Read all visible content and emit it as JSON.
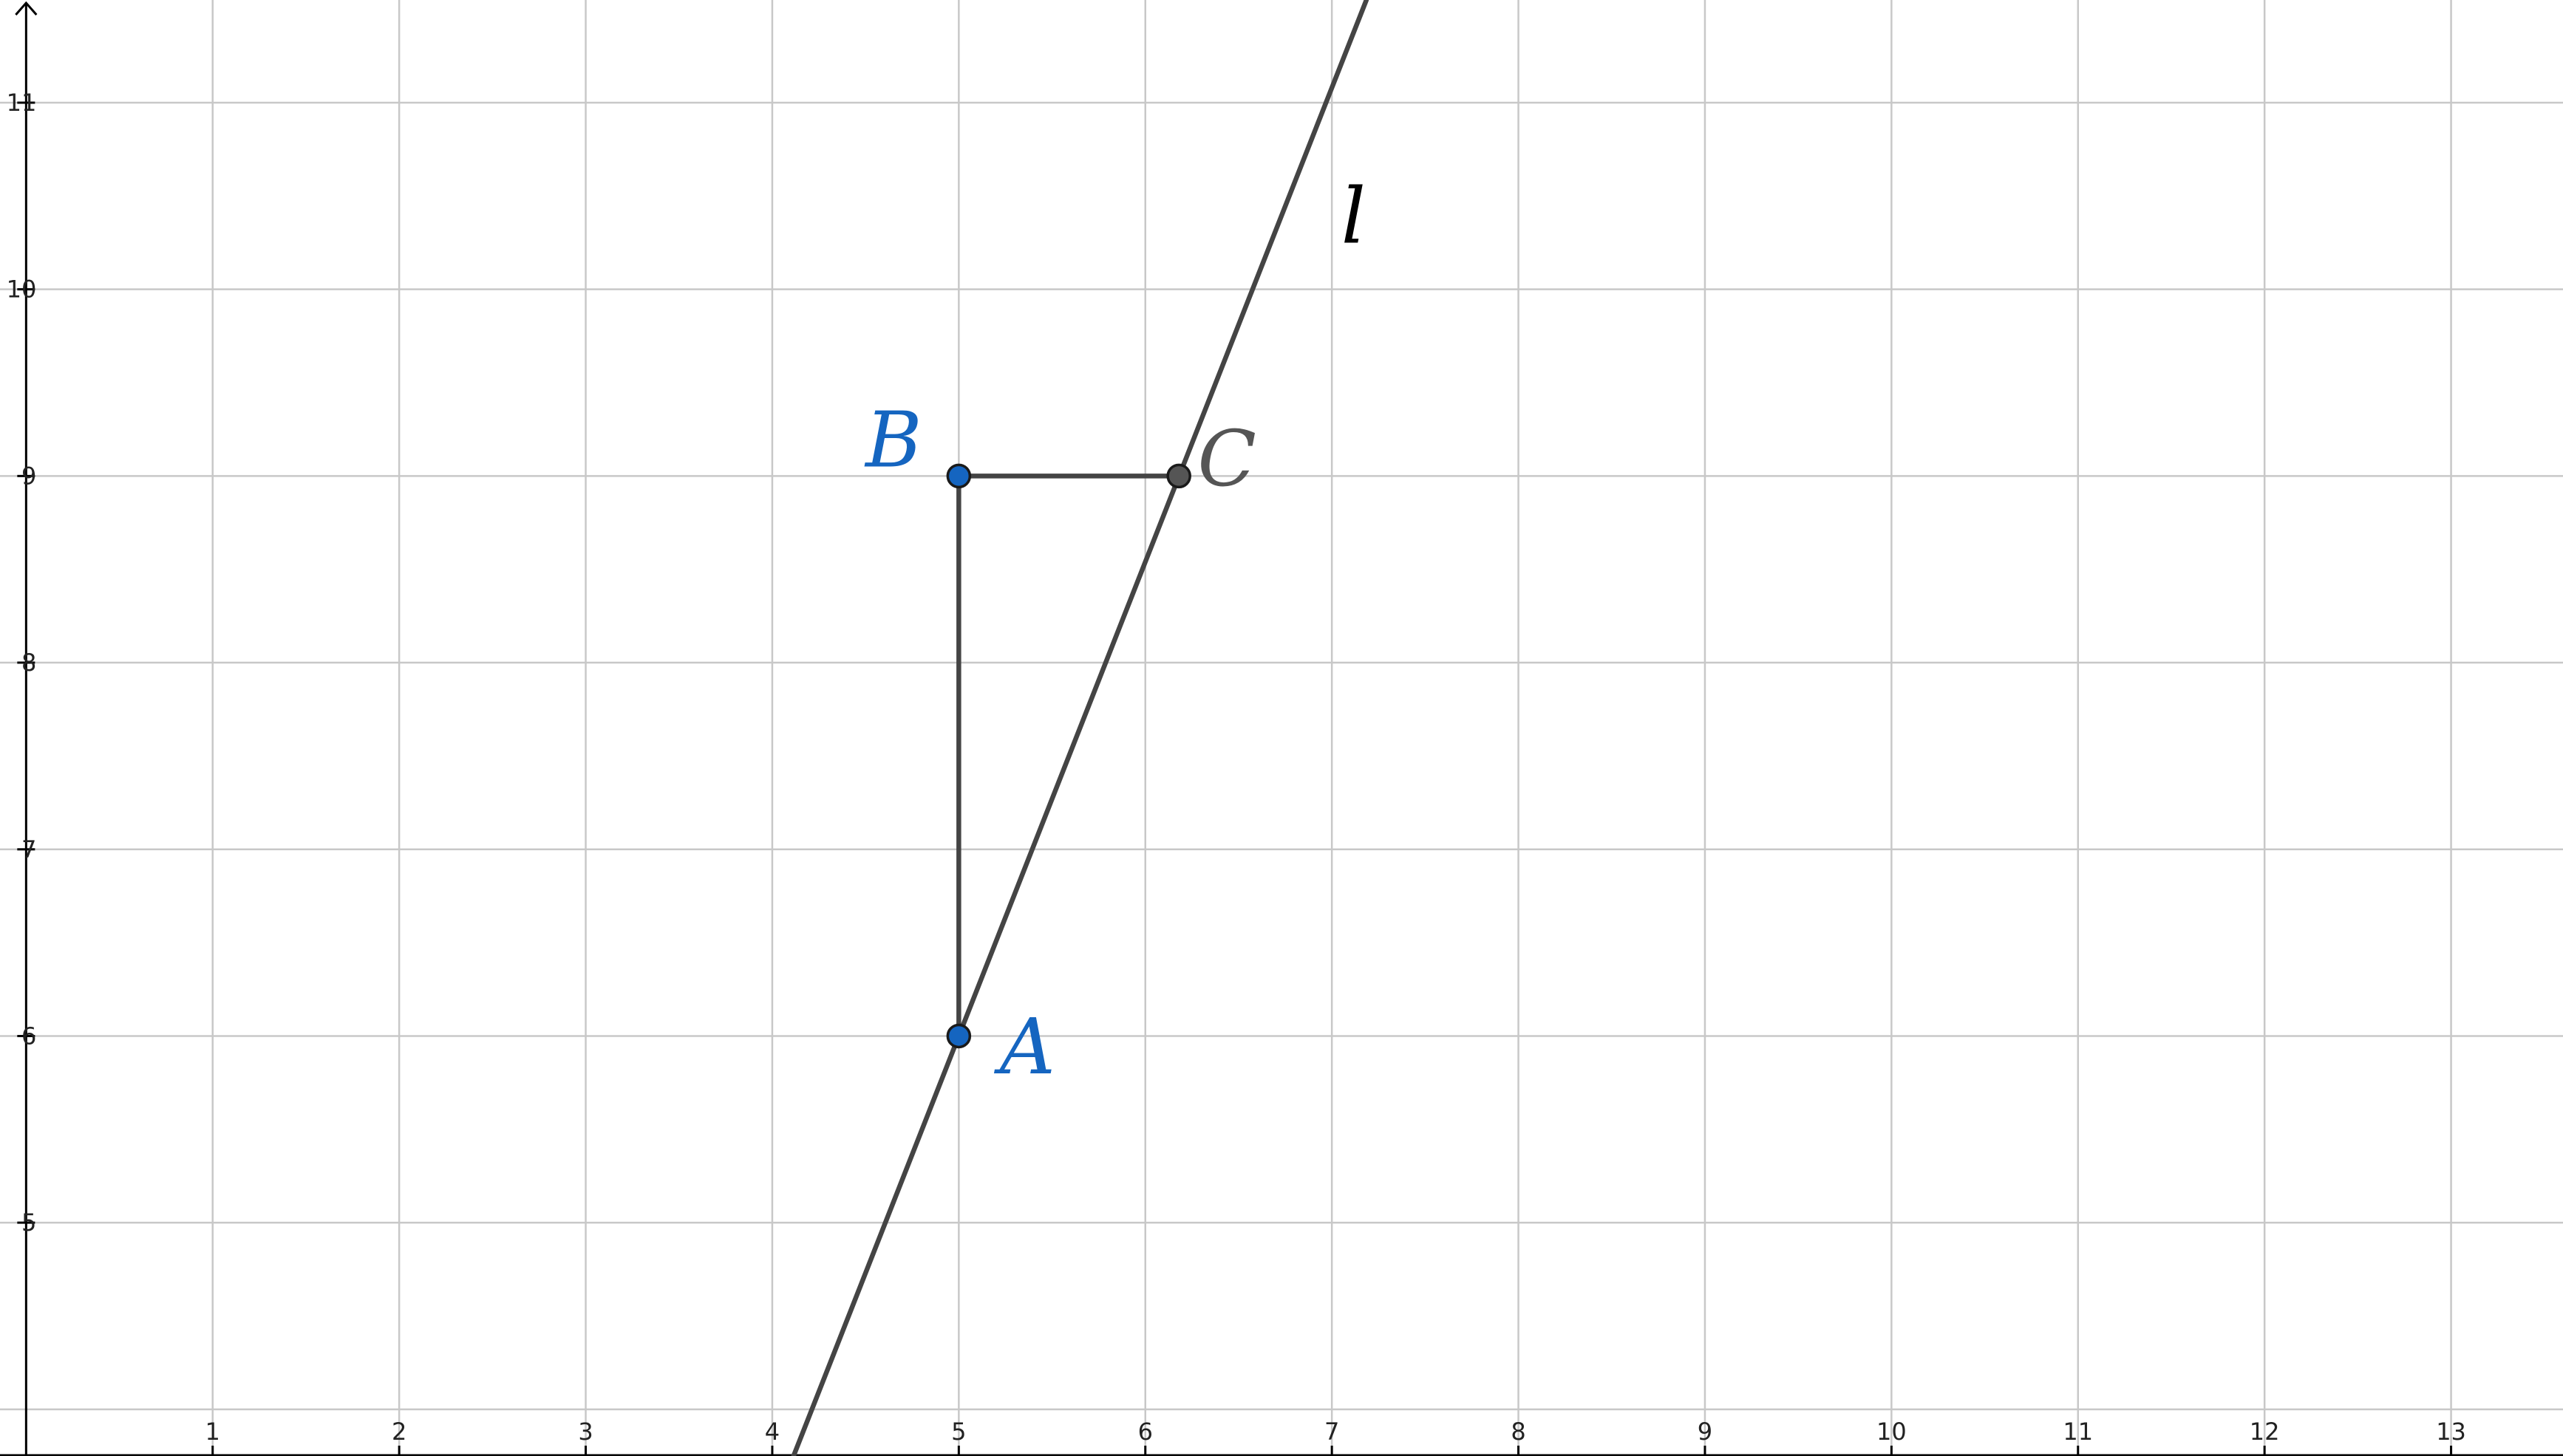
{
  "graph": {
    "x_ticks": [
      "1",
      "2",
      "3",
      "4",
      "5",
      "6",
      "7",
      "8",
      "9",
      "10",
      "11",
      "12",
      "13"
    ],
    "y_ticks": [
      "5",
      "6",
      "7",
      "8",
      "9",
      "10",
      "11"
    ],
    "x_range": [
      -0.14,
      13.6
    ],
    "y_range": [
      3.75,
      11.55
    ],
    "grid": true,
    "colors": {
      "grid": "#c8c8c8",
      "axis": "#000000",
      "line": "#444444",
      "point_blue": "#1565c0",
      "point_gray": "#555555"
    }
  },
  "points": [
    {
      "id": "A",
      "label": "A",
      "x": 5,
      "y": 6,
      "color": "#1565c0"
    },
    {
      "id": "B",
      "label": "B",
      "x": 5,
      "y": 9,
      "color": "#1565c0"
    },
    {
      "id": "C",
      "label": "C",
      "x": 6.18,
      "y": 9,
      "color": "#555555"
    }
  ],
  "segments": [
    {
      "from": "A",
      "to": "B"
    },
    {
      "from": "B",
      "to": "C"
    }
  ],
  "lines": [
    {
      "label": "l",
      "through": "A",
      "slope": 2.54,
      "color": "#444444"
    }
  ]
}
